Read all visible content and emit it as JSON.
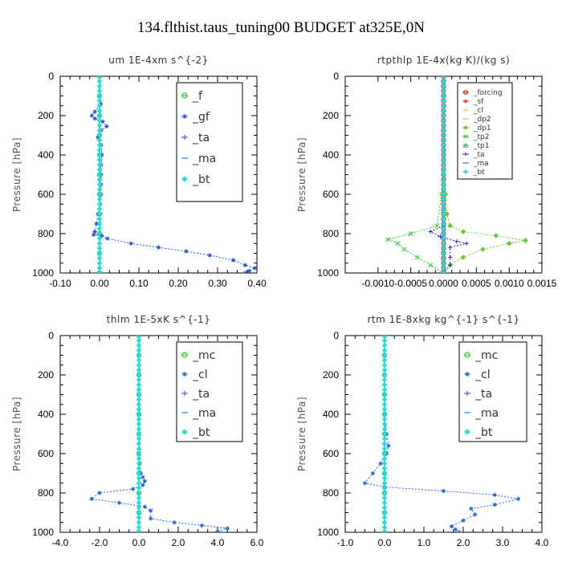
{
  "title": "134.flthist.taus_tuning00  BUDGET at325E,0N",
  "chart_data": [
    {
      "type": "line",
      "title": "um   1E-4xm s^{-2}",
      "ylabel": "Pressure [hPa]",
      "ylim": [
        0,
        1000
      ],
      "y_inverted": true,
      "xlim": [
        -0.1,
        0.4
      ],
      "xticks": [
        "-0.10",
        "0.00",
        "0.10",
        "0.20",
        "0.30",
        "0.40"
      ],
      "yticks": [
        "0",
        "200",
        "400",
        "600",
        "800",
        "1000"
      ],
      "legend_font": 14,
      "series": [
        {
          "name": "_f",
          "color": "#22cc22",
          "marker": "circle",
          "values": [
            [
              0,
              0
            ],
            [
              0,
              100
            ],
            [
              0,
              200
            ],
            [
              0,
              300
            ],
            [
              0,
              400
            ],
            [
              0,
              500
            ],
            [
              0,
              600
            ],
            [
              0,
              700
            ],
            [
              0,
              800
            ],
            [
              0,
              900
            ],
            [
              0,
              1000
            ]
          ]
        },
        {
          "name": "_gf",
          "color": "#2255dd",
          "marker": "star",
          "values": [
            [
              0,
              100
            ],
            [
              0.003,
              140
            ],
            [
              -0.012,
              180
            ],
            [
              -0.02,
              200
            ],
            [
              -0.012,
              215
            ],
            [
              0.008,
              230
            ],
            [
              0.018,
              255
            ],
            [
              0.004,
              275
            ],
            [
              -0.004,
              310
            ],
            [
              0.004,
              350
            ],
            [
              0.006,
              400
            ],
            [
              0.004,
              450
            ],
            [
              0.004,
              500
            ],
            [
              0.004,
              550
            ],
            [
              0.004,
              600
            ],
            [
              0.002,
              650
            ],
            [
              -0.004,
              700
            ],
            [
              -0.008,
              750
            ],
            [
              -0.012,
              790
            ],
            [
              -0.015,
              805
            ],
            [
              0.005,
              810
            ],
            [
              0.02,
              825
            ],
            [
              0.08,
              850
            ],
            [
              0.15,
              870
            ],
            [
              0.22,
              890
            ],
            [
              0.28,
              910
            ],
            [
              0.34,
              935
            ],
            [
              0.37,
              960
            ],
            [
              0.395,
              975
            ],
            [
              0.38,
              990
            ],
            [
              0.37,
              1000
            ]
          ]
        },
        {
          "name": "_ta",
          "color": "#3333ee",
          "marker": "plus",
          "values": []
        },
        {
          "name": "_ma",
          "color": "#2288ee",
          "marker": "dash",
          "values": []
        },
        {
          "name": "_bt",
          "color": "#22dddd",
          "marker": "diamond",
          "values": [
            [
              0,
              0
            ],
            [
              0,
              1000
            ]
          ]
        }
      ]
    },
    {
      "type": "line",
      "title": "rtpthlp   1E-4x(kg K)/(kg s)",
      "ylabel": "Pressure [hPa]",
      "ylim": [
        0,
        1000
      ],
      "y_inverted": true,
      "xlim": [
        -0.0015,
        0.0015
      ],
      "xticks": [
        "-0.0010",
        "-0.0005",
        "0.0000",
        "0.0005",
        "0.0010",
        "0.0015"
      ],
      "xtick_values": [
        -0.001,
        -0.0005,
        0,
        0.0005,
        0.001,
        0.0015
      ],
      "yticks": [
        "0",
        "200",
        "400",
        "600",
        "800",
        "1000"
      ],
      "legend_font": 9,
      "series": [
        {
          "name": "_forcing",
          "color": "#cc2222",
          "marker": "circle",
          "values": [
            [
              0,
              0
            ],
            [
              0,
              1000
            ]
          ]
        },
        {
          "name": "_sf",
          "color": "#dd3322",
          "marker": "star",
          "values": [
            [
              0,
              0
            ],
            [
              0,
              1000
            ]
          ]
        },
        {
          "name": "_cl",
          "color": "#eecc22",
          "marker": "plus",
          "values": []
        },
        {
          "name": "_dp2",
          "color": "#aadd22",
          "marker": "dash",
          "values": []
        },
        {
          "name": "_dp1",
          "color": "#66cc22",
          "marker": "diamond",
          "values": [
            [
              0,
              500
            ],
            [
              3e-05,
              600
            ],
            [
              5e-05,
              700
            ],
            [
              0.0001,
              760
            ],
            [
              0.0003,
              790
            ],
            [
              0.0008,
              810
            ],
            [
              0.00125,
              835
            ],
            [
              0.001,
              850
            ],
            [
              0.0006,
              880
            ],
            [
              0.0003,
              920
            ],
            [
              0.0001,
              960
            ],
            [
              0,
              1000
            ]
          ]
        },
        {
          "name": "_tp2",
          "color": "#22cc22",
          "marker": "cross",
          "values": [
            [
              0,
              500
            ],
            [
              -3e-05,
              600
            ],
            [
              -0.0001,
              760
            ],
            [
              -0.0005,
              800
            ],
            [
              -0.00085,
              830
            ],
            [
              -0.0007,
              850
            ],
            [
              -0.0006,
              880
            ],
            [
              -0.0004,
              920
            ],
            [
              -0.0002,
              960
            ],
            [
              0,
              1000
            ]
          ]
        },
        {
          "name": "_tp1",
          "color": "#22aa66",
          "marker": "triangle",
          "values": []
        },
        {
          "name": "_ta",
          "color": "#2222dd",
          "marker": "plus",
          "values": [
            [
              0,
              760
            ],
            [
              -0.0002,
              790
            ],
            [
              -5e-05,
              815
            ],
            [
              0.0002,
              840
            ],
            [
              0.00035,
              850
            ],
            [
              0.0001,
              870
            ],
            [
              0.0001,
              920
            ],
            [
              0.0001,
              960
            ],
            [
              0,
              1000
            ]
          ]
        },
        {
          "name": "_ma",
          "color": "#2288ee",
          "marker": "dash",
          "values": []
        },
        {
          "name": "_bt",
          "color": "#22dddd",
          "marker": "diamond",
          "values": [
            [
              0,
              0
            ],
            [
              0,
              1000
            ]
          ]
        }
      ]
    },
    {
      "type": "line",
      "title": "thlm   1E-5xK  s^{-1}",
      "ylabel": "Pressure [hPa]",
      "ylim": [
        0,
        1000
      ],
      "y_inverted": true,
      "xlim": [
        -4,
        6
      ],
      "xticks": [
        "-4.0",
        "-2.0",
        "0.0",
        "2.0",
        "4.0",
        "6.0"
      ],
      "yticks": [
        "0",
        "200",
        "400",
        "600",
        "800",
        "1000"
      ],
      "legend_font": 14,
      "series": [
        {
          "name": "_mc",
          "color": "#22cc22",
          "marker": "circle",
          "values": [
            [
              0,
              0
            ],
            [
              0,
              100
            ],
            [
              0,
              200
            ],
            [
              0,
              300
            ],
            [
              0,
              400
            ],
            [
              0,
              500
            ],
            [
              0,
              600
            ],
            [
              0,
              700
            ],
            [
              0,
              800
            ],
            [
              0,
              900
            ],
            [
              0,
              1000
            ]
          ]
        },
        {
          "name": "_cl",
          "color": "#2266dd",
          "marker": "star",
          "values": [
            [
              0,
              0
            ],
            [
              0,
              100
            ],
            [
              0,
              200
            ],
            [
              0,
              300
            ],
            [
              0,
              400
            ],
            [
              0,
              500
            ],
            [
              0,
              600
            ],
            [
              0.05,
              650
            ],
            [
              0.1,
              700
            ],
            [
              0.2,
              720
            ],
            [
              0.3,
              740
            ],
            [
              0.2,
              760
            ],
            [
              -0.3,
              780
            ],
            [
              -2.0,
              800
            ],
            [
              -2.4,
              830
            ],
            [
              -1.0,
              850
            ],
            [
              0.3,
              870
            ],
            [
              0.6,
              890
            ],
            [
              0.6,
              930
            ],
            [
              1.8,
              950
            ],
            [
              3.2,
              965
            ],
            [
              4.5,
              980
            ],
            [
              4.0,
              995
            ]
          ]
        },
        {
          "name": "_ta",
          "color": "#3333ee",
          "marker": "plus",
          "values": []
        },
        {
          "name": "_ma",
          "color": "#2288ee",
          "marker": "dash",
          "values": []
        },
        {
          "name": "_bt",
          "color": "#22dddd",
          "marker": "diamond",
          "values": [
            [
              0,
              0
            ],
            [
              0,
              1000
            ]
          ]
        }
      ]
    },
    {
      "type": "line",
      "title": "rtm   1E-8xkg kg^{-1} s^{-1}",
      "ylabel": "Pressure [hPa]",
      "ylim": [
        0,
        1000
      ],
      "y_inverted": true,
      "xlim": [
        -1,
        4
      ],
      "xticks": [
        "-1.0",
        "0.0",
        "1.0",
        "2.0",
        "3.0",
        "4.0"
      ],
      "yticks": [
        "0",
        "200",
        "400",
        "600",
        "800",
        "1000"
      ],
      "legend_font": 14,
      "series": [
        {
          "name": "_mc",
          "color": "#22cc22",
          "marker": "circle",
          "values": [
            [
              0,
              0
            ],
            [
              0,
              100
            ],
            [
              0,
              200
            ],
            [
              0,
              300
            ],
            [
              0,
              400
            ],
            [
              0,
              500
            ],
            [
              0,
              600
            ],
            [
              0,
              700
            ],
            [
              0,
              800
            ],
            [
              0,
              900
            ],
            [
              0,
              1000
            ]
          ]
        },
        {
          "name": "_cl",
          "color": "#2266dd",
          "marker": "star",
          "values": [
            [
              0,
              0
            ],
            [
              0,
              400
            ],
            [
              0.05,
              500
            ],
            [
              0.1,
              560
            ],
            [
              0.05,
              600
            ],
            [
              -0.1,
              650
            ],
            [
              -0.3,
              700
            ],
            [
              -0.5,
              750
            ],
            [
              0,
              770
            ],
            [
              1.5,
              790
            ],
            [
              2.8,
              810
            ],
            [
              3.4,
              830
            ],
            [
              2.8,
              860
            ],
            [
              2.2,
              880
            ],
            [
              2.3,
              910
            ],
            [
              2.0,
              940
            ],
            [
              1.7,
              970
            ],
            [
              1.8,
              985
            ],
            [
              1.9,
              1000
            ]
          ]
        },
        {
          "name": "_ta",
          "color": "#3333ee",
          "marker": "plus",
          "values": []
        },
        {
          "name": "_ma",
          "color": "#2288ee",
          "marker": "dash",
          "values": []
        },
        {
          "name": "_bt",
          "color": "#22dddd",
          "marker": "diamond",
          "values": [
            [
              0,
              0
            ],
            [
              0,
              1000
            ]
          ]
        }
      ]
    }
  ]
}
